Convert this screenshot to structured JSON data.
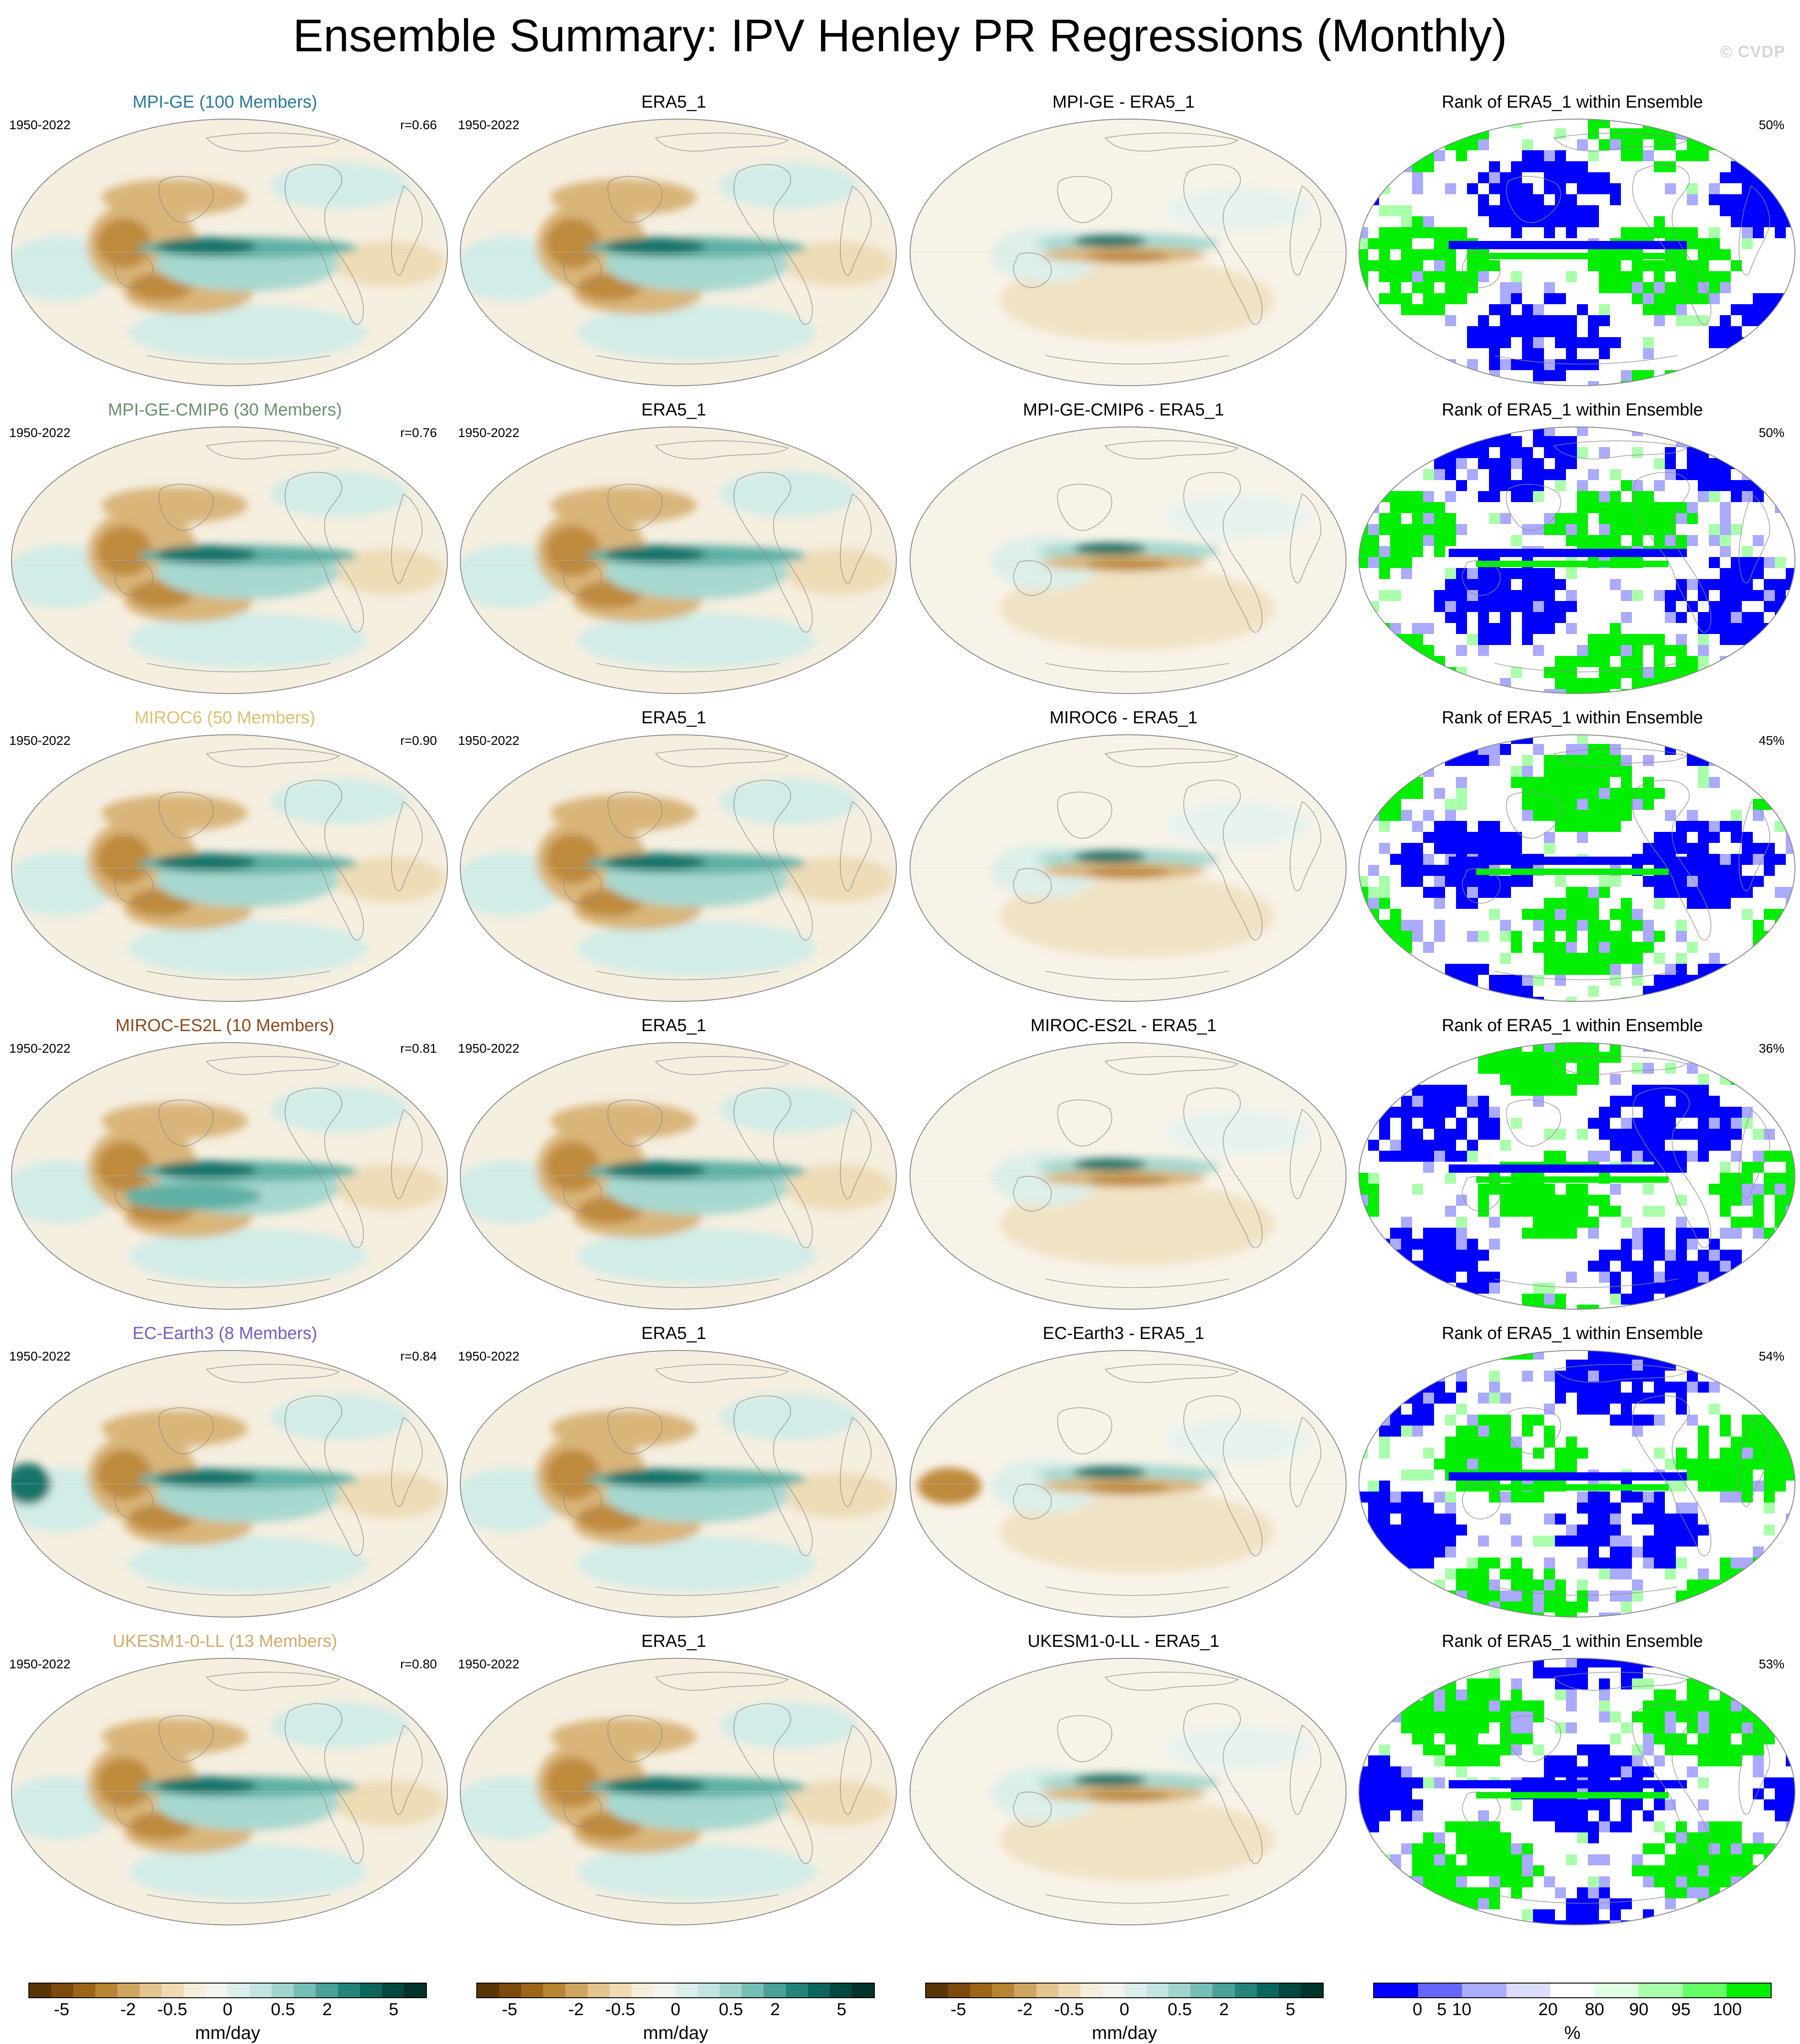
{
  "title": "Ensemble Summary: IPV Henley PR Regressions (Monthly)",
  "watermark": "© CVDP",
  "rows": [
    {
      "model": "MPI-GE (100 Members)",
      "model_color": "#2a7a9a",
      "years": "1950-2022",
      "corr": "r=0.66",
      "obs_title": "ERA5_1",
      "obs_years": "1950-2022",
      "diff_title": "MPI-GE - ERA5_1",
      "rank_title": "Rank of ERA5_1 within Ensemble",
      "rank_pct": "50%"
    },
    {
      "model": "MPI-GE-CMIP6 (30 Members)",
      "model_color": "#6b8f6e",
      "years": "1950-2022",
      "corr": "r=0.76",
      "obs_title": "ERA5_1",
      "obs_years": "1950-2022",
      "diff_title": "MPI-GE-CMIP6 - ERA5_1",
      "rank_title": "Rank of ERA5_1 within Ensemble",
      "rank_pct": "50%"
    },
    {
      "model": "MIROC6 (50 Members)",
      "model_color": "#d9c173",
      "years": "1950-2022",
      "corr": "r=0.90",
      "obs_title": "ERA5_1",
      "obs_years": "1950-2022",
      "diff_title": "MIROC6 - ERA5_1",
      "rank_title": "Rank of ERA5_1 within Ensemble",
      "rank_pct": "45%"
    },
    {
      "model": "MIROC-ES2L (10 Members)",
      "model_color": "#8a4a1e",
      "years": "1950-2022",
      "corr": "r=0.81",
      "obs_title": "ERA5_1",
      "obs_years": "1950-2022",
      "diff_title": "MIROC-ES2L - ERA5_1",
      "rank_title": "Rank of ERA5_1 within Ensemble",
      "rank_pct": "36%"
    },
    {
      "model": "EC-Earth3 (8 Members)",
      "model_color": "#7a5cc0",
      "years": "1950-2022",
      "corr": "r=0.84",
      "obs_title": "ERA5_1",
      "obs_years": "1950-2022",
      "diff_title": "EC-Earth3 - ERA5_1",
      "rank_title": "Rank of ERA5_1 within Ensemble",
      "rank_pct": "54%"
    },
    {
      "model": "UKESM1-0-LL (13 Members)",
      "model_color": "#d4aa6e",
      "years": "1950-2022",
      "corr": "r=0.80",
      "obs_title": "ERA5_1",
      "obs_years": "1950-2022",
      "diff_title": "UKESM1-0-LL - ERA5_1",
      "rank_title": "Rank of ERA5_1 within Ensemble",
      "rank_pct": "53%"
    }
  ],
  "colorbars": [
    {
      "type": "regression",
      "unit": "mm/day",
      "ticks": [
        "-5",
        "-2",
        "-0.5",
        "0",
        "0.5",
        "2",
        "5"
      ]
    },
    {
      "type": "regression",
      "unit": "mm/day",
      "ticks": [
        "-5",
        "-2",
        "-0.5",
        "0",
        "0.5",
        "2",
        "5"
      ]
    },
    {
      "type": "regression",
      "unit": "mm/day",
      "ticks": [
        "-5",
        "-2",
        "-0.5",
        "0",
        "0.5",
        "2",
        "5"
      ]
    },
    {
      "type": "rank",
      "unit": "%",
      "ticks": [
        "0",
        "5",
        "10",
        "20",
        "80",
        "90",
        "95",
        "100"
      ]
    }
  ],
  "colors": {
    "regression_scale": [
      "#5a3506",
      "#7c4a0d",
      "#9c6415",
      "#b98431",
      "#cea560",
      "#e0c58e",
      "#eedab3",
      "#f6eedb",
      "#f2f3ee",
      "#dcefec",
      "#c2e5e0",
      "#9fd5cd",
      "#76bfb4",
      "#4aa297",
      "#24847a",
      "#0c655c",
      "#014940",
      "#00332b"
    ],
    "rank_scale": [
      "#0000ff",
      "#6666ff",
      "#aaaaff",
      "#dcdcff",
      "#ffffff",
      "#e0ffe0",
      "#aaffaa",
      "#66ff66",
      "#00ee00"
    ]
  }
}
